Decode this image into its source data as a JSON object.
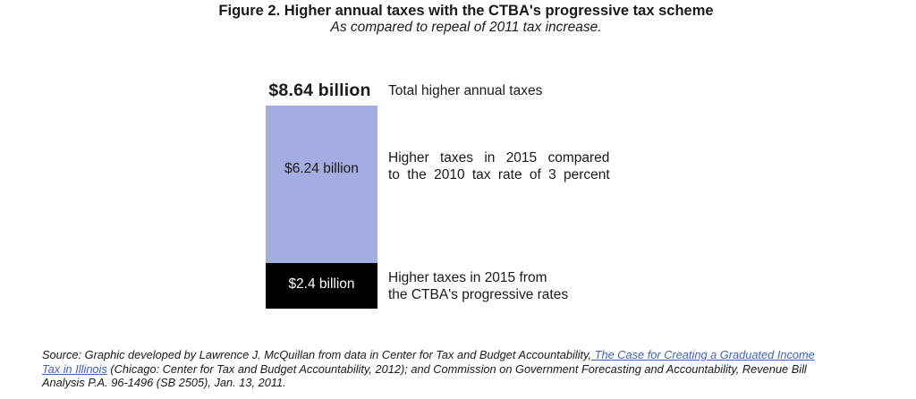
{
  "figure": {
    "title": "Figure 2. Higher annual taxes with the CTBA's progressive tax scheme",
    "subtitle": "As compared to repeal of 2011 tax increase."
  },
  "chart_data": {
    "type": "bar",
    "variant": "single-stacked-vertical-bar",
    "unit": "billion USD",
    "title": "Figure 2. Higher annual taxes with the CTBA's progressive tax scheme",
    "subtitle": "As compared to repeal of 2011 tax increase.",
    "total": {
      "value": 8.64,
      "label": "$8.64 billion",
      "description": "Total higher annual taxes"
    },
    "segments": [
      {
        "name": "higher-taxes-vs-2010-rate",
        "value": 6.24,
        "label": "$6.24 billion",
        "description_line1": "Higher taxes in 2015 compared",
        "description_line2": "to the 2010 tax rate of 3 percent",
        "color": "#A3ADE2",
        "label_color": "#1a1a1a"
      },
      {
        "name": "higher-taxes-ctba-progressive",
        "value": 2.4,
        "label": "$2.4 billion",
        "description_line1": "Higher taxes in 2015 from",
        "description_line2": "the CTBA's progressive rates",
        "color": "#000000",
        "label_color": "#ffffff"
      }
    ],
    "legend": "none",
    "axes": "none"
  },
  "source": {
    "line1_text": "Source: Graphic developed by Lawrence J. McQuillan from data in Center for Tax and Budget Accountability,",
    "line1_link": " The Case for Creating a Graduated Income",
    "line2_link": "Tax in Illinois",
    "line2_text": " (Chicago: Center for Tax and Budget Accountability, 2012); and Commission on Government Forecasting and Accountability, Revenue Bill",
    "line3_text": "Analysis P.A. 96-1496 (SB 2505), Jan. 13, 2011.",
    "link_color": "#3D64B5"
  }
}
